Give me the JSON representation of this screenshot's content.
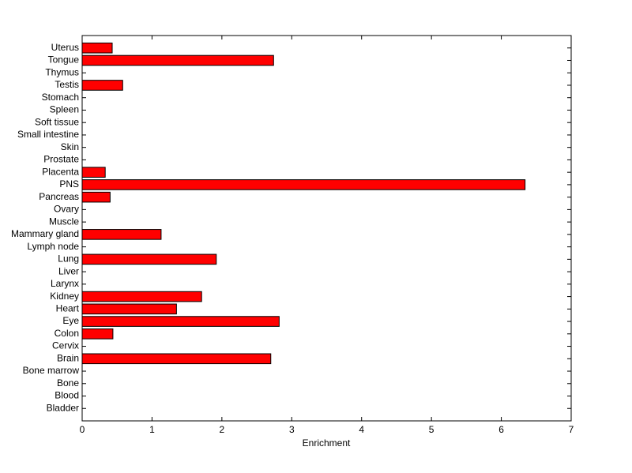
{
  "chart_data": {
    "type": "barh",
    "x_label": "Enrichment",
    "categories": [
      "Uterus",
      "Tongue",
      "Thymus",
      "Testis",
      "Stomach",
      "Spleen",
      "Soft tissue",
      "Small intestine",
      "Skin",
      "Prostate",
      "Placenta",
      "PNS",
      "Pancreas",
      "Ovary",
      "Muscle",
      "Mammary gland",
      "Lymph node",
      "Lung",
      "Liver",
      "Larynx",
      "Kidney",
      "Heart",
      "Eye",
      "Colon",
      "Cervix",
      "Brain",
      "Bone marrow",
      "Bone",
      "Blood",
      "Bladder"
    ],
    "values": [
      0.43,
      2.74,
      0,
      0.58,
      0,
      0,
      0,
      0,
      0,
      0,
      0.33,
      6.34,
      0.4,
      0,
      0,
      1.13,
      0,
      1.92,
      0,
      0,
      1.71,
      1.35,
      2.82,
      0.44,
      0,
      2.7,
      0,
      0,
      0,
      0
    ],
    "color": "#ff0000",
    "xlim": [
      0,
      7
    ],
    "xticks": [
      0,
      1,
      2,
      3,
      4,
      5,
      6,
      7
    ]
  }
}
